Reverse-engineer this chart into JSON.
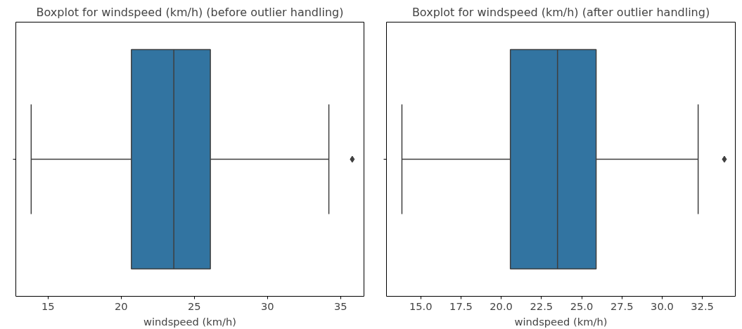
{
  "chart_data": [
    {
      "type": "box",
      "title": "Boxplot for windspeed (km/h) (before outlier handling)",
      "xlabel": "windspeed (km/h)",
      "orientation": "horizontal",
      "categories": [
        null
      ],
      "xlim": [
        12.8,
        36.6
      ],
      "xticks": [
        15,
        20,
        25,
        30,
        35
      ],
      "grid": false,
      "marker": "diamond",
      "series": [
        {
          "color": "#3274a1",
          "boxes": [
            {
              "low": 13.85,
              "q1": 20.7,
              "median": 23.6,
              "q3": 26.1,
              "high": 34.2,
              "outliers": [
                35.8
              ]
            }
          ]
        }
      ]
    },
    {
      "type": "box",
      "title": "Boxplot for windspeed (km/h) (after outlier handling)",
      "xlabel": "windspeed (km/h)",
      "orientation": "horizontal",
      "categories": [
        null
      ],
      "xlim": [
        12.87,
        34.55
      ],
      "xticks": [
        {
          "value": 15,
          "label": "15.0"
        },
        {
          "value": 17.5,
          "label": "17.5"
        },
        {
          "value": 20,
          "label": "20.0"
        },
        {
          "value": 22.5,
          "label": "22.5"
        },
        {
          "value": 25,
          "label": "25.0"
        },
        {
          "value": 27.5,
          "label": "27.5"
        },
        {
          "value": 30,
          "label": "30.0"
        },
        {
          "value": 32.5,
          "label": "32.5"
        }
      ],
      "grid": false,
      "marker": "diamond",
      "series": [
        {
          "color": "#3274a1",
          "boxes": [
            {
              "low": 13.83,
              "q1": 20.57,
              "median": 23.5,
              "q3": 25.9,
              "high": 32.24,
              "outliers": [
                33.87
              ]
            }
          ]
        }
      ]
    }
  ]
}
